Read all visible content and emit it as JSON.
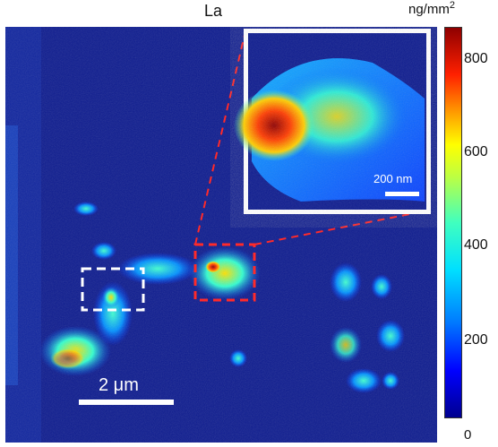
{
  "title": "La",
  "colorbar": {
    "unit": "ng/mm",
    "unit_exp": "2",
    "ticks": [
      "800",
      "600",
      "400",
      "200",
      "0"
    ]
  },
  "scalebar_main": "2 μm",
  "scalebar_inset": "200 nm",
  "colors": {
    "background": "#0d1b8f",
    "box_white": "#ffffff",
    "box_red": "#ff2a2a"
  }
}
